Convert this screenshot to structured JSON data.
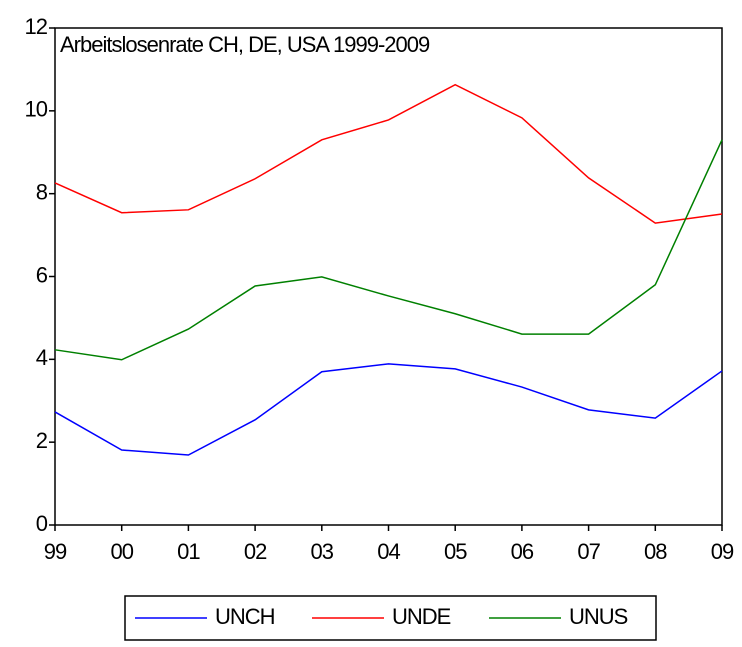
{
  "chart_data": {
    "type": "line",
    "title": "Arbeitslosenrate CH, DE, USA 1999-2009",
    "categories": [
      "99",
      "00",
      "01",
      "02",
      "03",
      "04",
      "05",
      "06",
      "07",
      "08",
      "09"
    ],
    "series": [
      {
        "name": "UNCH",
        "color": "#0000ff",
        "values": [
          2.73,
          1.81,
          1.69,
          2.54,
          3.7,
          3.89,
          3.77,
          3.33,
          2.78,
          2.58,
          3.72
        ]
      },
      {
        "name": "UNDE",
        "color": "#ff0000",
        "values": [
          8.26,
          7.54,
          7.61,
          8.36,
          9.3,
          9.78,
          10.63,
          9.83,
          8.38,
          7.29,
          7.51
        ]
      },
      {
        "name": "UNUS",
        "color": "#008000",
        "values": [
          4.23,
          3.99,
          4.73,
          5.77,
          5.99,
          5.53,
          5.1,
          4.61,
          4.61,
          5.8,
          9.3
        ]
      }
    ],
    "ylim": [
      0,
      12
    ],
    "yticks": [
      0,
      2,
      4,
      6,
      8,
      10,
      12
    ],
    "grid": false,
    "legend": "bottom"
  }
}
